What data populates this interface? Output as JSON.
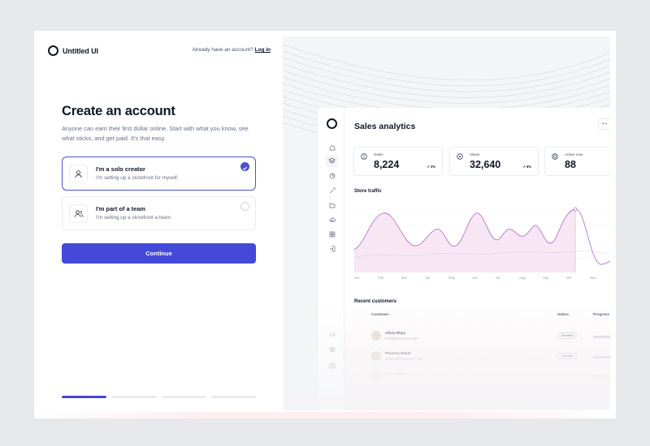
{
  "brand": {
    "name": "Untitled UI"
  },
  "auth": {
    "prompt": "Already have an account?",
    "login_label": "Log in"
  },
  "form": {
    "heading": "Create an account",
    "subheading": "Anyone can earn their first dollar online. Start with what you know, see what sticks, and get paid. It's that easy.",
    "options": [
      {
        "title": "I'm a solo creator",
        "subtitle": "I'm setting up a storefront for myself.",
        "icon": "user-icon",
        "selected": true
      },
      {
        "title": "I'm part of a team",
        "subtitle": "I'm setting up a storefront a team.",
        "icon": "users-icon",
        "selected": false
      }
    ],
    "continue_label": "Continue",
    "steps_total": 4,
    "step_current": 1
  },
  "colors": {
    "accent": "#4549d8",
    "text": "#101828",
    "muted": "#667085",
    "chart_line": "#b676c9",
    "chart_fill": "#f1d5ea"
  },
  "preview": {
    "title": "Sales analytics",
    "kpis": [
      {
        "label": "Sales",
        "value": "8,224",
        "trend": "2%",
        "icon": "dollar-icon"
      },
      {
        "label": "Views",
        "value": "32,640",
        "trend": "6%",
        "icon": "eye-icon"
      },
      {
        "label": "Active now",
        "value": "88",
        "trend": "",
        "icon": "globe-icon"
      }
    ],
    "traffic_title": "Store traffic",
    "months": [
      "Jan",
      "Feb",
      "Mar",
      "Apr",
      "May",
      "Jun",
      "Jul",
      "Aug",
      "Sep",
      "Oct",
      "Nov"
    ],
    "recent_title": "Recent customers",
    "table": {
      "headers": [
        "Customer",
        "Status",
        "Progress"
      ],
      "rows": [
        {
          "name": "Olivia Rhye",
          "email": "hello@yourname.com",
          "status": "Enrolled"
        },
        {
          "name": "Phoenix Baker",
          "email": "phoenix@yourname.com",
          "status": "Enrolled"
        },
        {
          "name": "Lana Steiner",
          "email": "",
          "status": ""
        }
      ]
    }
  }
}
